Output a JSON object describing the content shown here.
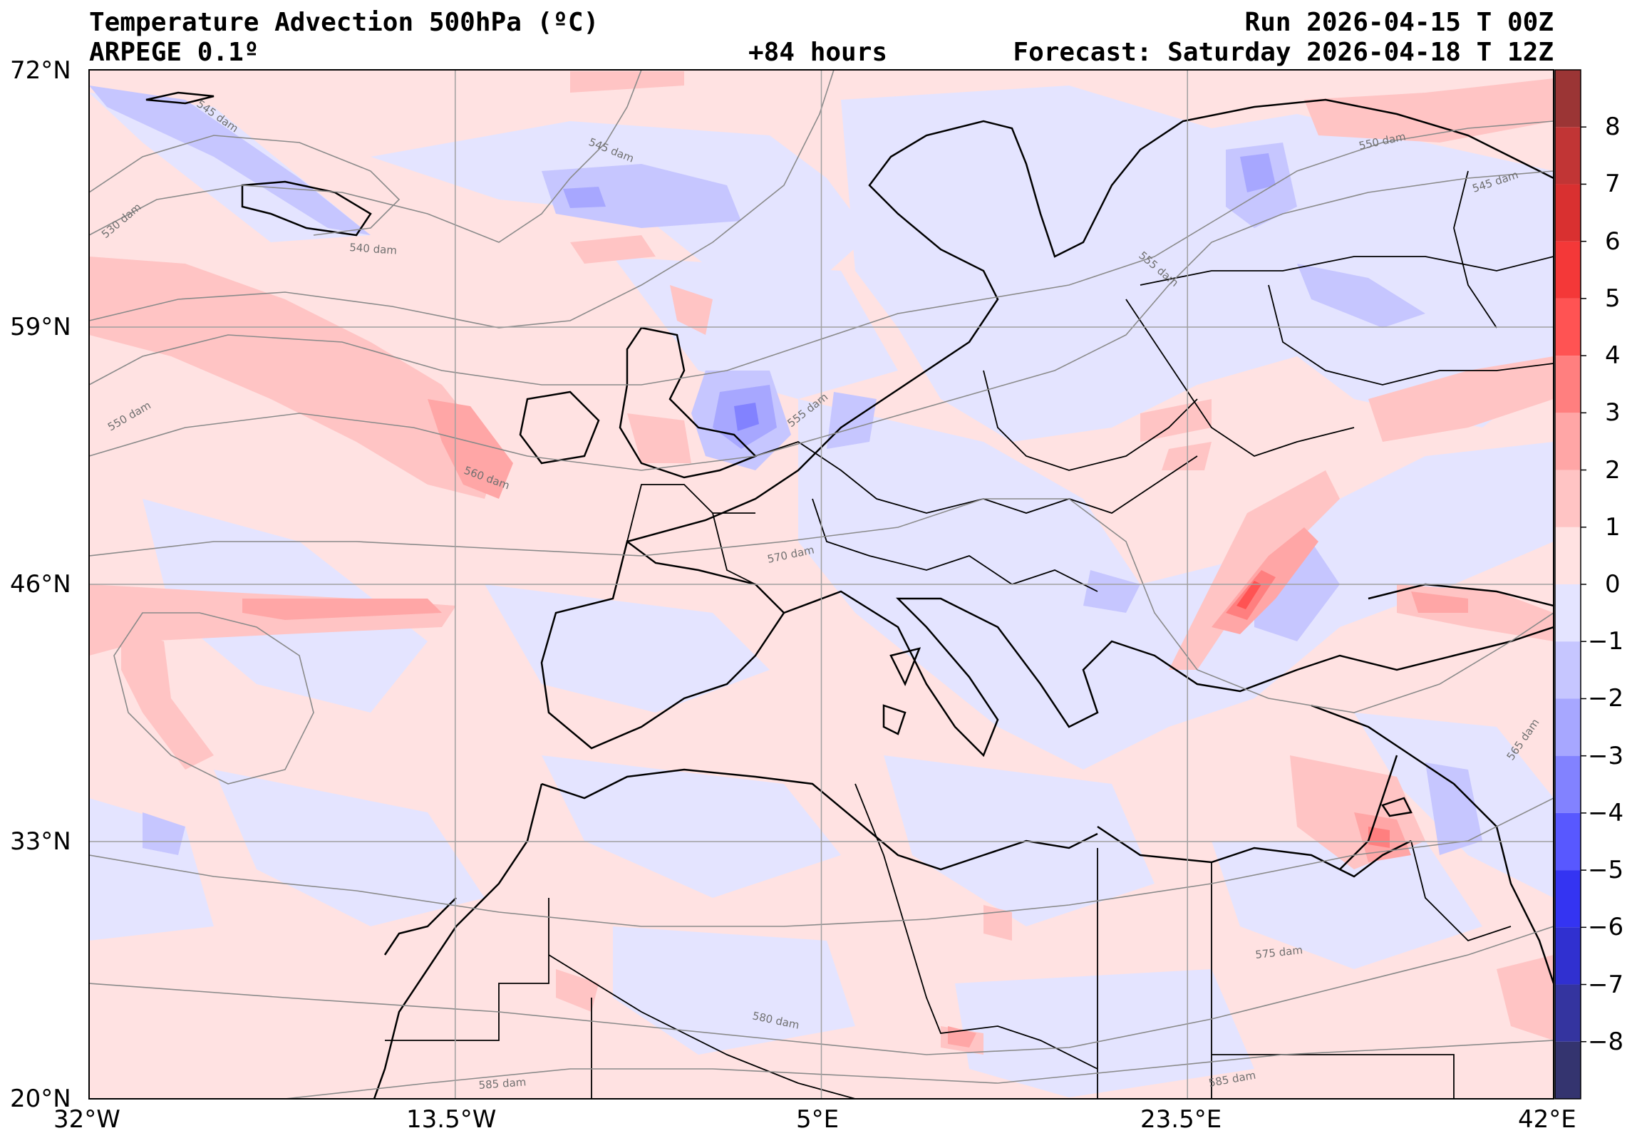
{
  "header": {
    "title": "Temperature Advection  500hPa (ºC)",
    "model": "ARPEGE 0.1º",
    "lead": "+84 hours",
    "run": "Run 2026-04-15 T 00Z",
    "forecast": "Forecast: Saturday 2026-04-18 T 12Z"
  },
  "axes": {
    "lon_labels": [
      "32°W",
      "13.5°W",
      "5°E",
      "23.5°E",
      "42°E"
    ],
    "lat_labels": [
      "72°N",
      "59°N",
      "46°N",
      "33°N",
      "20°N"
    ],
    "lon_range": [
      -32,
      42
    ],
    "lat_range": [
      20,
      72
    ]
  },
  "colorbar": {
    "labels": [
      "8",
      "7",
      "6",
      "5",
      "4",
      "3",
      "2",
      "1",
      "0",
      "−1",
      "−2",
      "−3",
      "−4",
      "−5",
      "−6",
      "−7",
      "−8"
    ],
    "range": [
      -9,
      9
    ],
    "colors_warm": [
      "#ffe2e2",
      "#ffc4c4",
      "#ffa6a6",
      "#ff7f7f",
      "#ff5353",
      "#f43838",
      "#d93030",
      "#c13535",
      "#9b3535"
    ],
    "colors_cold": [
      "#e4e4ff",
      "#c6c6ff",
      "#a7a7ff",
      "#8282ff",
      "#5858ff",
      "#3434f2",
      "#3030d0",
      "#34349f",
      "#34346f"
    ]
  },
  "contour_labels": [
    "545 dam",
    "530 dam",
    "540 dam",
    "550 dam",
    "560 dam",
    "555 dam",
    "570 dam",
    "550 dam",
    "545 dam",
    "555 dam",
    "565 dam",
    "575 dam",
    "580 dam",
    "585 dam",
    "585 dam",
    "545 dam"
  ],
  "colors": {
    "background_field": "#ffe2e2",
    "coast": "#000000",
    "grid": "#a0a0a0",
    "contour": "#8a8a8a"
  }
}
